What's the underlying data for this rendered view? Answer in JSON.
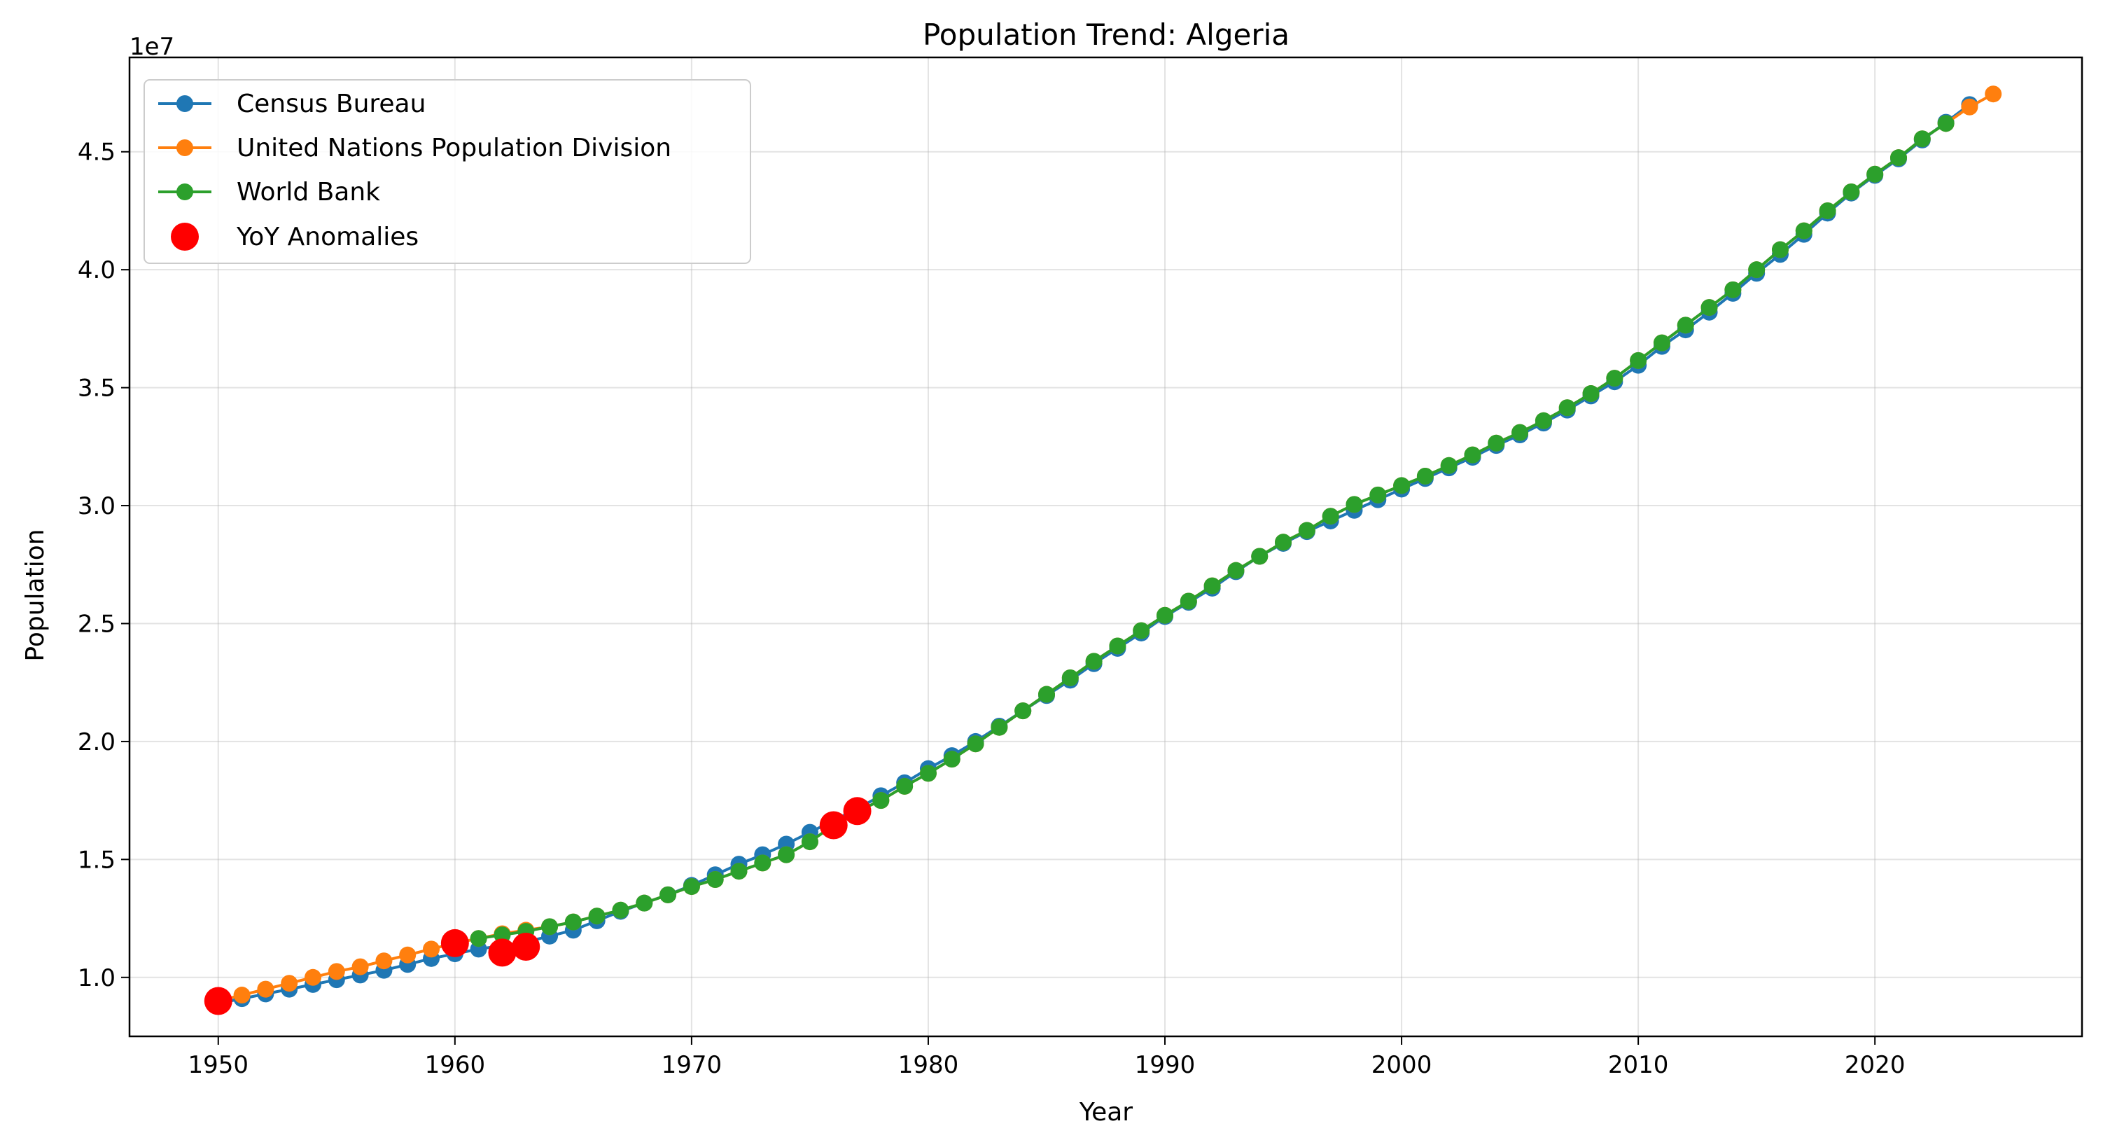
{
  "chart_data": {
    "type": "line",
    "title": "Population Trend: Algeria",
    "xlabel": "Year",
    "ylabel": "Population",
    "y_offset_label": "1e7",
    "xlim": [
      1946.25,
      2028.75
    ],
    "ylim": [
      7500000.0,
      49000000.0
    ],
    "x_ticks": [
      1950,
      1960,
      1970,
      1980,
      1990,
      2000,
      2010,
      2020
    ],
    "x_tick_labels": [
      "1950",
      "1960",
      "1970",
      "1980",
      "1990",
      "2000",
      "2010",
      "2020"
    ],
    "y_ticks": [
      10000000.0,
      15000000.0,
      20000000.0,
      25000000.0,
      30000000.0,
      35000000.0,
      40000000.0,
      45000000.0
    ],
    "y_tick_labels": [
      "1.0",
      "1.5",
      "2.0",
      "2.5",
      "3.0",
      "3.5",
      "4.0",
      "4.5"
    ],
    "grid": true,
    "legend_position": "top-left",
    "series": [
      {
        "name": "Census Bureau",
        "color": "#1f77b4",
        "x": [
          1950,
          1951,
          1952,
          1953,
          1954,
          1955,
          1956,
          1957,
          1958,
          1959,
          1960,
          1961,
          1962,
          1963,
          1964,
          1965,
          1966,
          1967,
          1968,
          1969,
          1970,
          1971,
          1972,
          1973,
          1974,
          1975,
          1976,
          1977,
          1978,
          1979,
          1980,
          1981,
          1982,
          1983,
          1984,
          1985,
          1986,
          1987,
          1988,
          1989,
          1990,
          1991,
          1992,
          1993,
          1994,
          1995,
          1996,
          1997,
          1998,
          1999,
          2000,
          2001,
          2002,
          2003,
          2004,
          2005,
          2006,
          2007,
          2008,
          2009,
          2010,
          2011,
          2012,
          2013,
          2014,
          2015,
          2016,
          2017,
          2018,
          2019,
          2020,
          2021,
          2022,
          2023,
          2024
        ],
        "y": [
          8900000,
          9100000,
          9300000,
          9500000,
          9700000,
          9900000,
          10100000,
          10300000,
          10550000,
          10800000,
          11000000,
          11200000,
          11350000,
          11500000,
          11750000,
          12000000,
          12400000,
          12800000,
          13150000,
          13500000,
          13900000,
          14350000,
          14800000,
          15200000,
          15650000,
          16150000,
          16650000,
          17150000,
          17700000,
          18250000,
          18850000,
          19400000,
          20000000,
          20650000,
          21300000,
          21950000,
          22600000,
          23300000,
          23950000,
          24600000,
          25300000,
          25900000,
          26500000,
          27200000,
          27850000,
          28400000,
          28900000,
          29350000,
          29800000,
          30250000,
          30700000,
          31150000,
          31600000,
          32050000,
          32550000,
          33000000,
          33500000,
          34050000,
          34650000,
          35250000,
          35950000,
          36750000,
          37450000,
          38200000,
          39000000,
          39850000,
          40650000,
          41500000,
          42400000,
          43250000,
          44000000,
          44700000,
          45500000,
          46250000,
          47000000
        ]
      },
      {
        "name": "United Nations Population Division",
        "color": "#ff7f0e",
        "x": [
          1950,
          1951,
          1952,
          1953,
          1954,
          1955,
          1956,
          1957,
          1958,
          1959,
          1960,
          1961,
          1962,
          1963,
          1964,
          1965,
          1966,
          1967,
          1968,
          1969,
          1970,
          1971,
          1972,
          1973,
          1974,
          1975,
          1976,
          1977,
          1978,
          1979,
          1980,
          1981,
          1982,
          1983,
          1984,
          1985,
          1986,
          1987,
          1988,
          1989,
          1990,
          1991,
          1992,
          1993,
          1994,
          1995,
          1996,
          1997,
          1998,
          1999,
          2000,
          2001,
          2002,
          2003,
          2004,
          2005,
          2006,
          2007,
          2008,
          2009,
          2010,
          2011,
          2012,
          2013,
          2014,
          2015,
          2016,
          2017,
          2018,
          2019,
          2020,
          2021,
          2022,
          2023,
          2024,
          2025
        ],
        "y": [
          9000000,
          9250000,
          9500000,
          9750000,
          10000000,
          10250000,
          10450000,
          10700000,
          10950000,
          11200000,
          11450000,
          11650000,
          11850000,
          12000000,
          12150000,
          12350000,
          12600000,
          12850000,
          13150000,
          13500000,
          13850000,
          14150000,
          14500000,
          14850000,
          15200000,
          15750000,
          16450000,
          17050000,
          17500000,
          18100000,
          18650000,
          19250000,
          19900000,
          20600000,
          21300000,
          22000000,
          22700000,
          23400000,
          24050000,
          24700000,
          25350000,
          25950000,
          26600000,
          27250000,
          27850000,
          28450000,
          28950000,
          29550000,
          30050000,
          30450000,
          30850000,
          31250000,
          31700000,
          32150000,
          32650000,
          33100000,
          33600000,
          34150000,
          34750000,
          35400000,
          36150000,
          36900000,
          37650000,
          38400000,
          39150000,
          40000000,
          40850000,
          41650000,
          42500000,
          43300000,
          44050000,
          44750000,
          45550000,
          46200000,
          46900000,
          47450000
        ]
      },
      {
        "name": "World Bank",
        "color": "#2ca02c",
        "x": [
          1961,
          1962,
          1963,
          1964,
          1965,
          1966,
          1967,
          1968,
          1969,
          1970,
          1971,
          1972,
          1973,
          1974,
          1975,
          1976,
          1977,
          1978,
          1979,
          1980,
          1981,
          1982,
          1983,
          1984,
          1985,
          1986,
          1987,
          1988,
          1989,
          1990,
          1991,
          1992,
          1993,
          1994,
          1995,
          1996,
          1997,
          1998,
          1999,
          2000,
          2001,
          2002,
          2003,
          2004,
          2005,
          2006,
          2007,
          2008,
          2009,
          2010,
          2011,
          2012,
          2013,
          2014,
          2015,
          2016,
          2017,
          2018,
          2019,
          2020,
          2021,
          2022,
          2023
        ],
        "y": [
          11650000,
          11800000,
          11950000,
          12150000,
          12350000,
          12600000,
          12850000,
          13150000,
          13500000,
          13850000,
          14150000,
          14500000,
          14850000,
          15200000,
          15750000,
          16450000,
          17050000,
          17500000,
          18100000,
          18650000,
          19250000,
          19900000,
          20600000,
          21300000,
          22000000,
          22700000,
          23400000,
          24050000,
          24700000,
          25350000,
          25950000,
          26600000,
          27250000,
          27850000,
          28450000,
          28950000,
          29550000,
          30050000,
          30450000,
          30850000,
          31250000,
          31700000,
          32150000,
          32650000,
          33100000,
          33600000,
          34150000,
          34750000,
          35400000,
          36150000,
          36900000,
          37650000,
          38400000,
          39150000,
          40000000,
          40850000,
          41650000,
          42500000,
          43300000,
          44050000,
          44750000,
          45550000,
          46200000
        ]
      }
    ],
    "anomalies": {
      "name": "YoY Anomalies",
      "color": "#ff0000",
      "x": [
        1950,
        1960,
        1962,
        1963,
        1976,
        1977
      ],
      "y": [
        9000000,
        11450000,
        11050000,
        11300000,
        16450000,
        17050000
      ]
    }
  }
}
